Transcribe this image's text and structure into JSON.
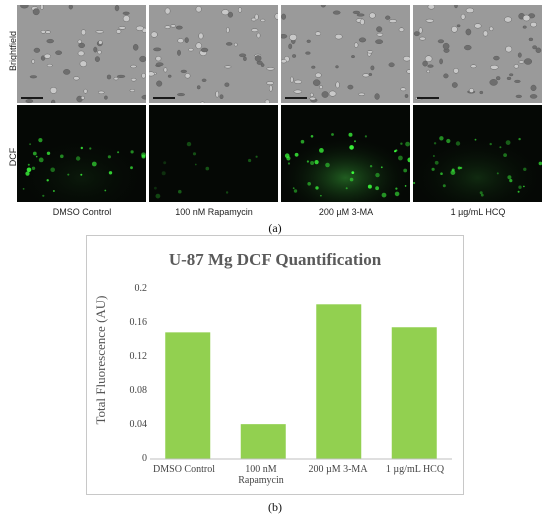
{
  "figure": {
    "row_labels": [
      "Brightfield",
      "DCF"
    ],
    "column_labels": [
      "DMSO Control",
      "100 nM Rapamycin",
      "200 µM 3-MA",
      "1 µg/mL HCQ"
    ],
    "caption_a": "(a)",
    "caption_b": "(b)",
    "colors": {
      "brightfield_bg": "#9a9a9a",
      "dcf_bg": "#050805",
      "fluorescence": "#3cff3c",
      "bar": "#92d050"
    }
  },
  "chart_data": {
    "type": "bar",
    "title": "U-87 Mg DCF Quantification",
    "xlabel": "",
    "ylabel": "Total Fluorescence (AU)",
    "categories": [
      "DMSO Control",
      "100 nM Rapamycin",
      "200 µM 3-MA",
      "1 µg/mL HCQ"
    ],
    "category_lines": [
      [
        "DMSO Control"
      ],
      [
        "100 nM",
        "Rapamycin"
      ],
      [
        "200 µM 3-MA"
      ],
      [
        "1 µg/mL HCQ"
      ]
    ],
    "values": [
      0.149,
      0.041,
      0.182,
      0.155
    ],
    "ylim": [
      0,
      0.2
    ],
    "yticks": [
      "0",
      "0.04",
      "0.08",
      "0.12",
      "0.16",
      "0.2"
    ],
    "grid": false
  }
}
